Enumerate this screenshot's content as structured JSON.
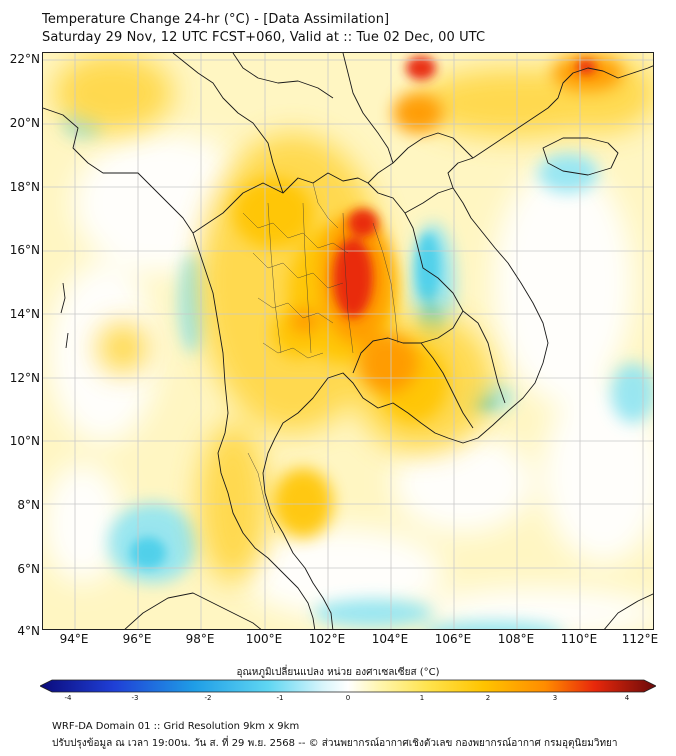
{
  "title_line1": "Temperature Change 24-hr (°C) - [Data Assimilation]",
  "title_line2": "Saturday 29 Nov, 12 UTC FCST+060, Valid at :: Tue 02 Dec, 00 UTC",
  "latitude_labels": [
    "22°N",
    "20°N",
    "18°N",
    "16°N",
    "14°N",
    "12°N",
    "10°N",
    "8°N",
    "6°N",
    "4°N"
  ],
  "longitude_labels": [
    "94°E",
    "96°E",
    "98°E",
    "100°E",
    "102°E",
    "104°E",
    "106°E",
    "108°E",
    "110°E",
    "112°E"
  ],
  "colorbar": {
    "title": "อุณหภูมิเปลี่ยนแปลง หน่วย องศาเซลเซียส (°C)",
    "min": -4,
    "max": 4,
    "tick_labels": [
      "-4",
      "-3",
      "-2",
      "-1",
      "0",
      "1",
      "2",
      "3",
      "4"
    ]
  },
  "footer_line1": "WRF-DA Domain 01 :: Grid Resolution 9km x 9km",
  "footer_line2": "ปรับปรุงข้อมูล ณ เวลา 19:00น. วัน ส. ที่ 29 พ.ย. 2568 -- © ส่วนพยากรณ์อากาศเชิงตัวเลข กองพยากรณ์อากาศ กรมอุตุนิยมวิทยา",
  "colors": {
    "background": "#fff7c8",
    "warm_yellow": "#ffd400",
    "warm_orange": "#ff9a00",
    "hot_red": "#e81b0b",
    "cool_cyan": "#44cdea",
    "border_line": "#222222"
  }
}
